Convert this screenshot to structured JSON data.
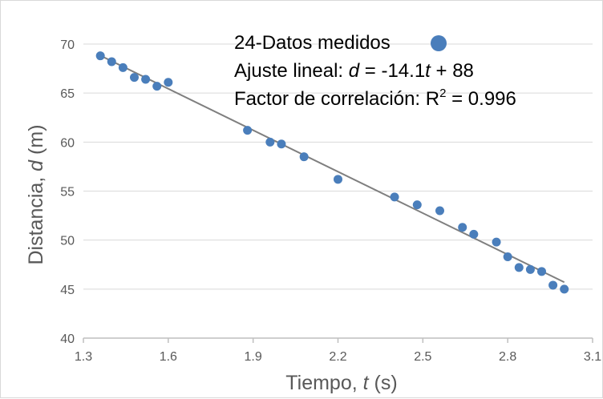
{
  "chart_data": {
    "type": "scatter",
    "x_ticks": [
      "1.3",
      "1.6",
      "1.9",
      "2.2",
      "2.5",
      "2.8",
      "3.1"
    ],
    "y_ticks": [
      "40",
      "45",
      "50",
      "55",
      "60",
      "65",
      "70"
    ],
    "xlim": [
      1.3,
      3.1
    ],
    "ylim": [
      40,
      70
    ],
    "x_tick_values": [
      1.3,
      1.6,
      1.9,
      2.2,
      2.5,
      2.8,
      3.1
    ],
    "y_tick_values": [
      40,
      45,
      50,
      55,
      60,
      65,
      70
    ],
    "xlabel": {
      "prefix": "Tiempo, ",
      "variable": "t",
      "suffix": " (s)"
    },
    "ylabel": {
      "prefix": "Distancia, ",
      "variable": "d",
      "suffix": " (m)"
    },
    "grid": "horizontal",
    "legend_position": "top-right",
    "series": [
      {
        "name": "24-Datos medidos",
        "color": "#4a7ebb",
        "marker": "circle",
        "x": [
          1.36,
          1.4,
          1.44,
          1.48,
          1.52,
          1.56,
          1.6,
          1.88,
          1.96,
          2.0,
          2.08,
          2.2,
          2.4,
          2.48,
          2.56,
          2.64,
          2.68,
          2.76,
          2.8,
          2.84,
          2.88,
          2.92,
          2.96,
          3.0
        ],
        "y": [
          68.8,
          68.2,
          67.6,
          66.6,
          66.4,
          65.7,
          66.1,
          61.2,
          60.0,
          59.8,
          58.5,
          56.2,
          54.4,
          53.6,
          53.0,
          51.3,
          50.6,
          49.8,
          48.3,
          47.2,
          47.0,
          46.8,
          45.4,
          45.0
        ]
      }
    ],
    "fit_line": {
      "color": "#7f7f7f",
      "slope": -14.1,
      "intercept": 88,
      "x_range": [
        1.36,
        3.0
      ]
    }
  },
  "legend": {
    "data_label": "24-Datos medidos",
    "fit_prefix": "Ajuste lineal: ",
    "fit_variable_d": "d",
    "fit_middle": " = -14.1",
    "fit_variable_t": "t",
    "fit_suffix": " + 88",
    "r_prefix": "Factor de correlación: R",
    "r_sup": "2",
    "r_suffix": " = 0.996"
  }
}
